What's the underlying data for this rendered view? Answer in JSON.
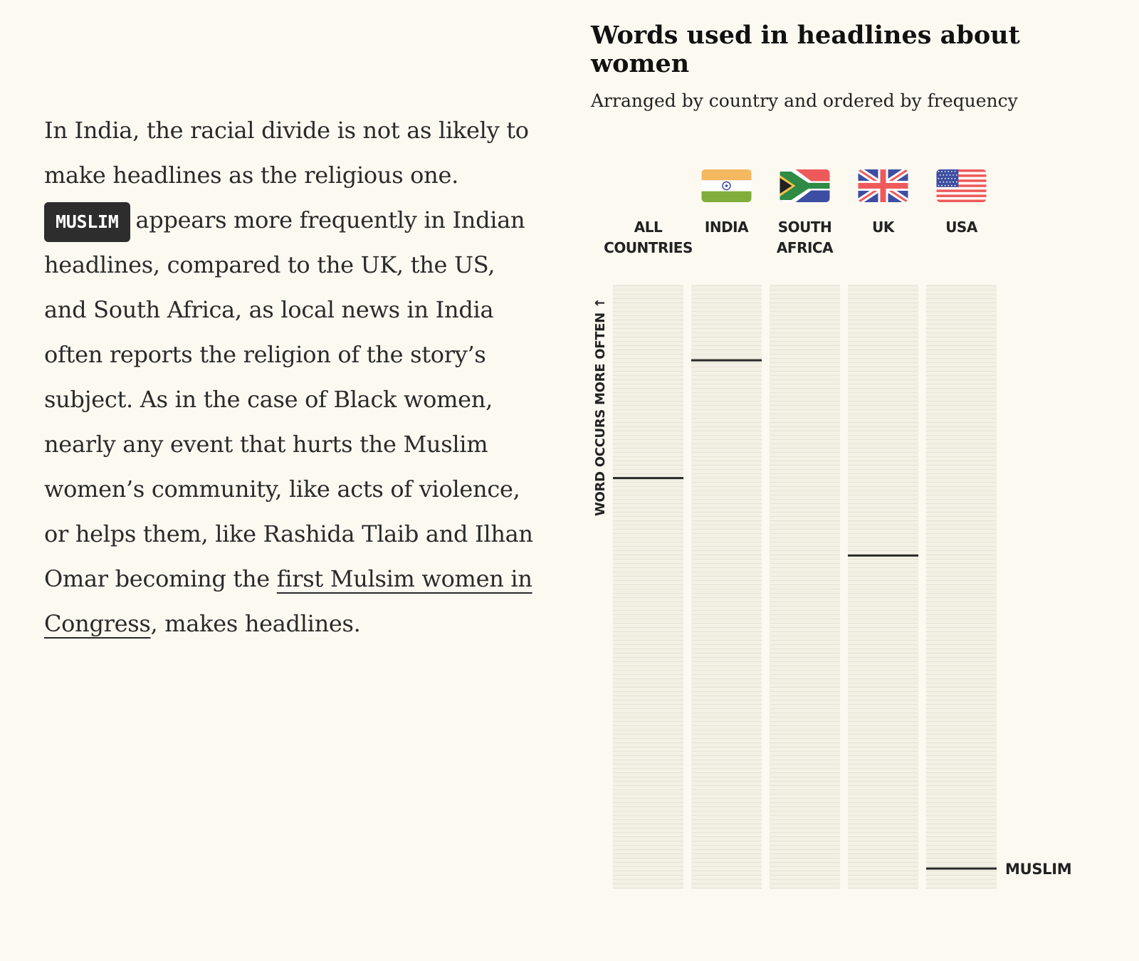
{
  "article": {
    "text_1": "In India, the racial divide is not as likely to make headlines as the religious one.",
    "tag": "MUSLIM",
    "text_2": "appears more frequently in Indian headlines, compared to the UK, the US, and South Africa, as local news in India often reports the religion of the story’s subject. As in the case of Black women, nearly any event that hurts the Muslim women’s community, like acts of violence, or helps them, like Rashida Tlaib and Ilhan Omar becoming the",
    "link": "first Mulsim women in Congress",
    "text_3": ", makes headlines."
  },
  "chart_data": {
    "type": "strip",
    "title": "Words used in headlines about women",
    "subtitle": "Arranged by country and ordered by frequency",
    "ylabel": "WORD OCCURS MORE OFTEN ↑",
    "word": "MUSLIM",
    "rank_range": [
      0,
      1
    ],
    "rank_note": "0 = top (most frequent), 1 = bottom (least frequent)",
    "columns": [
      {
        "label": [
          "ALL",
          "COUNTRIES"
        ],
        "flag": null,
        "rank": 0.32
      },
      {
        "label": [
          "INDIA"
        ],
        "flag": "india-flag",
        "rank": 0.125
      },
      {
        "label": [
          "SOUTH",
          "AFRICA"
        ],
        "flag": "south-africa-flag",
        "rank": null
      },
      {
        "label": [
          "UK"
        ],
        "flag": "uk-flag",
        "rank": 0.448
      },
      {
        "label": [
          "USA"
        ],
        "flag": "usa-flag",
        "rank": 0.966
      }
    ]
  },
  "colors": {
    "background": "#fcf9f1",
    "strip": "#f1eee2",
    "strip_line": "#e6e2d4",
    "marker": "#2a2a2a",
    "tag_bg": "#2d2d2d"
  }
}
